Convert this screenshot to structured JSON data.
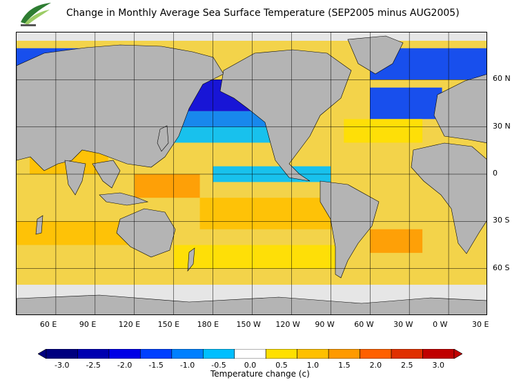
{
  "title": "Change in Monthly Average Sea Surface Temperature (SEP2005 minus AUG2005)",
  "logo": {
    "name": "agency-logo",
    "colors": [
      "#2e7d32",
      "#9ccc65"
    ]
  },
  "map": {
    "type": "global-sst-anomaly",
    "projection": "equirectangular",
    "lon_range": [
      30,
      390
    ],
    "lat_range": [
      -90,
      90
    ],
    "grid": true,
    "land_color": "#b4b4b4",
    "ice_color": "#e6e6e6",
    "lat_labels": [
      "60 N",
      "30 N",
      "0",
      "30 S",
      "60 S"
    ],
    "lat_values": [
      60,
      30,
      0,
      -30,
      -60
    ],
    "lon_labels": [
      "60 E",
      "90 E",
      "120 E",
      "150 E",
      "180 E",
      "150 W",
      "120 W",
      "90 W",
      "60 W",
      "30 W",
      "0 W",
      "30 E"
    ],
    "lon_values": [
      60,
      90,
      120,
      150,
      180,
      210,
      240,
      270,
      300,
      330,
      360,
      390
    ]
  },
  "chart_data": {
    "type": "heatmap",
    "title": "Change in Monthly Average Sea Surface Temperature (SEP2005 minus AUG2005)",
    "xlabel": "",
    "ylabel": "",
    "colorbar": {
      "title": "Temperature change  (c)",
      "ticks": [
        "-3.0",
        "-2.5",
        "-2.0",
        "-1.5",
        "-1.0",
        "-0.5",
        "0.0",
        "0.5",
        "1.0",
        "1.5",
        "2.0",
        "2.5",
        "3.0"
      ],
      "range": [
        -3.25,
        3.25
      ],
      "bins": [
        {
          "lo": -3.25,
          "hi": -2.75,
          "color": "#00007f"
        },
        {
          "lo": -2.75,
          "hi": -2.25,
          "color": "#0000b0"
        },
        {
          "lo": -2.25,
          "hi": -1.75,
          "color": "#0000e6"
        },
        {
          "lo": -1.75,
          "hi": -1.25,
          "color": "#0040ff"
        },
        {
          "lo": -1.25,
          "hi": -0.75,
          "color": "#0080ff"
        },
        {
          "lo": -0.75,
          "hi": -0.25,
          "color": "#00bfff"
        },
        {
          "lo": -0.25,
          "hi": 0.25,
          "color": "#ffffff"
        },
        {
          "lo": 0.25,
          "hi": 0.75,
          "color": "#ffe000"
        },
        {
          "lo": 0.75,
          "hi": 1.25,
          "color": "#ffc000"
        },
        {
          "lo": 1.25,
          "hi": 1.75,
          "color": "#ff9a00"
        },
        {
          "lo": 1.75,
          "hi": 2.25,
          "color": "#ff6000"
        },
        {
          "lo": 2.25,
          "hi": 2.75,
          "color": "#e03000"
        },
        {
          "lo": 2.75,
          "hi": 3.25,
          "color": "#c00000"
        }
      ]
    },
    "regions": [
      {
        "lat": [
          60,
          80
        ],
        "lon": [
          30,
          140
        ],
        "value": -1.6
      },
      {
        "lat": [
          40,
          60
        ],
        "lon": [
          140,
          240
        ],
        "value": -1.9
      },
      {
        "lat": [
          30,
          40
        ],
        "lon": [
          140,
          250
        ],
        "value": -1.0
      },
      {
        "lat": [
          20,
          30
        ],
        "lon": [
          120,
          250
        ],
        "value": -0.5
      },
      {
        "lat": [
          60,
          80
        ],
        "lon": [
          300,
          390
        ],
        "value": -1.4
      },
      {
        "lat": [
          35,
          55
        ],
        "lon": [
          300,
          355
        ],
        "value": -1.5
      },
      {
        "lat": [
          20,
          35
        ],
        "lon": [
          280,
          340
        ],
        "value": 0.4
      },
      {
        "lat": [
          0,
          20
        ],
        "lon": [
          40,
          100
        ],
        "value": 1.0
      },
      {
        "lat": [
          -15,
          0
        ],
        "lon": [
          120,
          170
        ],
        "value": 1.4
      },
      {
        "lat": [
          -5,
          5
        ],
        "lon": [
          180,
          270
        ],
        "value": -0.6
      },
      {
        "lat": [
          -35,
          -15
        ],
        "lon": [
          170,
          280
        ],
        "value": 0.8
      },
      {
        "lat": [
          -45,
          -30
        ],
        "lon": [
          30,
          120
        ],
        "value": 1.0
      },
      {
        "lat": [
          -50,
          -35
        ],
        "lon": [
          300,
          340
        ],
        "value": 1.6
      },
      {
        "lat": [
          -60,
          -45
        ],
        "lon": [
          150,
          280
        ],
        "value": 0.3
      }
    ]
  }
}
